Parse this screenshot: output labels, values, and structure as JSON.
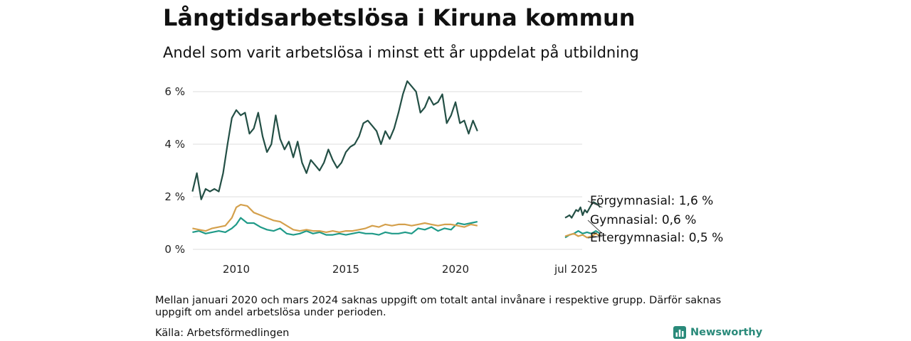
{
  "title": "Långtidsarbetslösa i Kiruna kommun",
  "subtitle": "Andel som varit arbetslösa i minst ett år uppdelat på utbildning",
  "footnote": "Mellan januari 2020 och mars 2024 saknas uppgift om totalt antal invånare i respektive grupp. Därför saknas uppgift om andel arbetslösa under perioden.",
  "source": "Källa: Arbetsförmedlingen",
  "logo_text": "Newsworthy",
  "colors": {
    "forgymnasial": "#234f45",
    "gymnasial": "#1f9a88",
    "eftergymnasial": "#d4a04c",
    "grid": "#dddddd",
    "logo": "#2a8a7a"
  },
  "chart_data": {
    "type": "line",
    "ylim": [
      0,
      7
    ],
    "ticks_y": [
      "0 %",
      "2 %",
      "4 %",
      "6 %"
    ],
    "ticks_y_values": [
      0,
      2,
      4,
      6
    ],
    "ticks_x": [
      "2010",
      "2015",
      "2020",
      "jul 2025"
    ],
    "ticks_x_values": [
      2010,
      2015,
      2020,
      2025.5
    ],
    "grid": true,
    "legend": "end-labels",
    "series": [
      {
        "name": "Förgymnasial",
        "end_label": "Förgymnasial: 1,6 %",
        "segments": [
          {
            "x": [
              2008.0,
              2008.2,
              2008.4,
              2008.6,
              2008.8,
              2009.0,
              2009.2,
              2009.4,
              2009.6,
              2009.8,
              2010.0,
              2010.2,
              2010.4,
              2010.6,
              2010.8,
              2011.0,
              2011.2,
              2011.4,
              2011.6,
              2011.8,
              2012.0,
              2012.2,
              2012.4,
              2012.6,
              2012.8,
              2013.0,
              2013.2,
              2013.4,
              2013.6,
              2013.8,
              2014.0,
              2014.2,
              2014.4,
              2014.6,
              2014.8,
              2015.0,
              2015.2,
              2015.4,
              2015.6,
              2015.8,
              2016.0,
              2016.2,
              2016.4,
              2016.6,
              2016.8,
              2017.0,
              2017.2,
              2017.4,
              2017.6,
              2017.8,
              2018.0,
              2018.2,
              2018.4,
              2018.6,
              2018.8,
              2019.0,
              2019.2,
              2019.4,
              2019.6,
              2019.8,
              2020.0,
              2020.2,
              2020.4,
              2020.6,
              2020.8,
              2021.0
            ],
            "y": [
              2.2,
              2.9,
              1.9,
              2.3,
              2.2,
              2.3,
              2.2,
              2.9,
              4.0,
              5.0,
              5.3,
              5.1,
              5.2,
              4.4,
              4.6,
              5.2,
              4.3,
              3.7,
              4.0,
              5.1,
              4.2,
              3.8,
              4.1,
              3.5,
              4.1,
              3.3,
              2.9,
              3.4,
              3.2,
              3.0,
              3.3,
              3.8,
              3.4,
              3.1,
              3.3,
              3.7,
              3.9,
              4.0,
              4.3,
              4.8,
              4.9,
              4.7,
              4.5,
              4.0,
              4.5,
              4.2,
              4.6,
              5.2,
              5.9,
              6.4,
              6.2,
              6.0,
              5.2,
              5.4,
              5.8,
              5.5,
              5.6,
              5.9,
              4.8,
              5.1,
              5.6,
              4.8,
              4.9,
              4.4,
              4.9,
              4.5
            ]
          },
          {
            "x": [
              2025.0,
              2025.1,
              2025.2,
              2025.3,
              2025.4,
              2025.5,
              2025.6,
              2025.7,
              2025.8,
              2025.9,
              2026.0,
              2026.1,
              2026.2,
              2026.3,
              2026.4,
              2026.5,
              2026.6
            ],
            "y": [
              1.2,
              1.25,
              1.3,
              1.2,
              1.35,
              1.5,
              1.45,
              1.6,
              1.3,
              1.5,
              1.4,
              1.55,
              1.7,
              1.8,
              1.75,
              1.7,
              1.6
            ]
          }
        ]
      },
      {
        "name": "Gymnasial",
        "end_label": "Gymnasial: 0,6 %",
        "segments": [
          {
            "x": [
              2008.0,
              2008.3,
              2008.6,
              2008.9,
              2009.2,
              2009.5,
              2009.8,
              2010.0,
              2010.2,
              2010.5,
              2010.8,
              2011.1,
              2011.4,
              2011.7,
              2012.0,
              2012.3,
              2012.6,
              2012.9,
              2013.2,
              2013.5,
              2013.8,
              2014.1,
              2014.4,
              2014.7,
              2015.0,
              2015.3,
              2015.6,
              2015.9,
              2016.2,
              2016.5,
              2016.8,
              2017.1,
              2017.4,
              2017.7,
              2018.0,
              2018.3,
              2018.6,
              2018.9,
              2019.2,
              2019.5,
              2019.8,
              2020.1,
              2020.4,
              2020.7,
              2021.0
            ],
            "y": [
              0.65,
              0.7,
              0.6,
              0.65,
              0.7,
              0.65,
              0.8,
              0.95,
              1.2,
              1.0,
              1.0,
              0.85,
              0.75,
              0.7,
              0.8,
              0.6,
              0.55,
              0.6,
              0.7,
              0.6,
              0.65,
              0.55,
              0.55,
              0.6,
              0.55,
              0.6,
              0.65,
              0.6,
              0.6,
              0.55,
              0.65,
              0.6,
              0.6,
              0.65,
              0.6,
              0.8,
              0.75,
              0.85,
              0.7,
              0.8,
              0.75,
              1.0,
              0.95,
              1.0,
              1.05
            ]
          },
          {
            "x": [
              2025.0,
              2025.2,
              2025.4,
              2025.6,
              2025.8,
              2026.0,
              2026.2,
              2026.4,
              2026.6
            ],
            "y": [
              0.45,
              0.55,
              0.6,
              0.7,
              0.6,
              0.65,
              0.6,
              0.7,
              0.6
            ]
          }
        ]
      },
      {
        "name": "Eftergymnasial",
        "end_label": "Eftergymnasial: 0,5 %",
        "segments": [
          {
            "x": [
              2008.0,
              2008.3,
              2008.6,
              2008.9,
              2009.2,
              2009.5,
              2009.8,
              2010.0,
              2010.2,
              2010.5,
              2010.8,
              2011.1,
              2011.4,
              2011.7,
              2012.0,
              2012.3,
              2012.6,
              2012.9,
              2013.2,
              2013.5,
              2013.8,
              2014.1,
              2014.4,
              2014.7,
              2015.0,
              2015.3,
              2015.6,
              2015.9,
              2016.2,
              2016.5,
              2016.8,
              2017.1,
              2017.4,
              2017.7,
              2018.0,
              2018.3,
              2018.6,
              2018.9,
              2019.2,
              2019.5,
              2019.8,
              2020.1,
              2020.4,
              2020.7,
              2021.0
            ],
            "y": [
              0.8,
              0.75,
              0.7,
              0.8,
              0.85,
              0.9,
              1.2,
              1.6,
              1.7,
              1.65,
              1.4,
              1.3,
              1.2,
              1.1,
              1.05,
              0.9,
              0.75,
              0.7,
              0.75,
              0.7,
              0.7,
              0.65,
              0.7,
              0.65,
              0.7,
              0.7,
              0.75,
              0.8,
              0.9,
              0.85,
              0.95,
              0.9,
              0.95,
              0.95,
              0.9,
              0.95,
              1.0,
              0.95,
              0.9,
              0.95,
              0.95,
              0.9,
              0.85,
              0.95,
              0.9
            ]
          },
          {
            "x": [
              2025.0,
              2025.2,
              2025.4,
              2025.6,
              2025.8,
              2026.0,
              2026.2,
              2026.4,
              2026.6
            ],
            "y": [
              0.5,
              0.55,
              0.6,
              0.5,
              0.55,
              0.45,
              0.5,
              0.6,
              0.5
            ]
          }
        ]
      }
    ]
  }
}
